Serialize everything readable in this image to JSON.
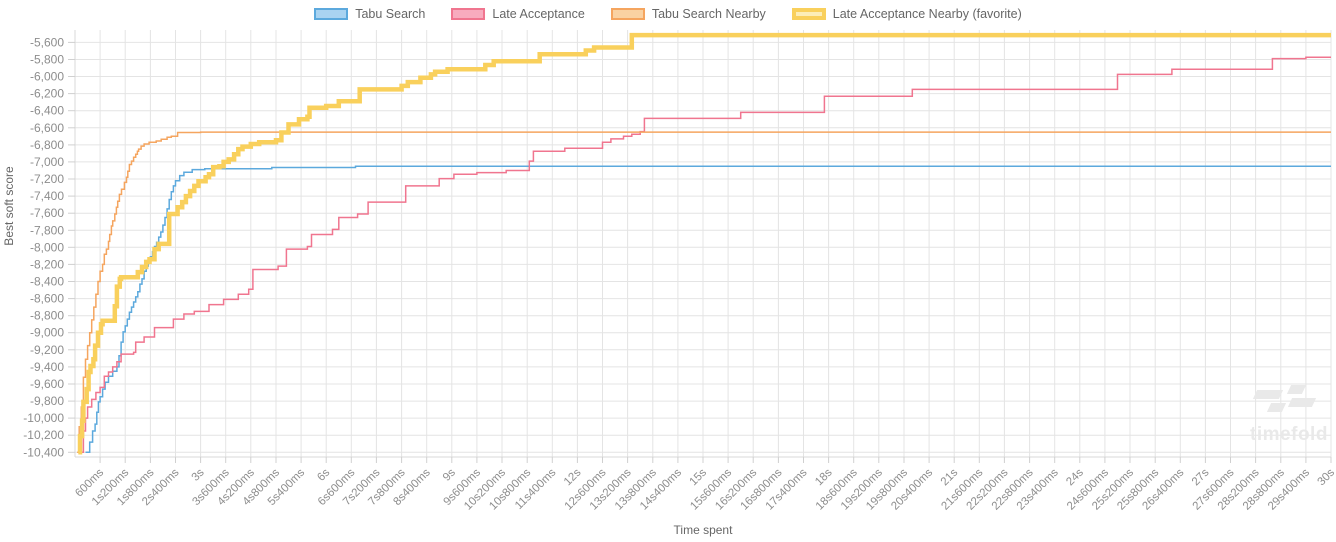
{
  "axes": {
    "x_title": "Time spent",
    "y_title": "Best soft score"
  },
  "watermark": {
    "text": "timefold"
  },
  "legend": {
    "items": [
      {
        "label": "Tabu Search",
        "color": "#5ca9dd",
        "fill": "#a9d3f1",
        "border_width": 2
      },
      {
        "label": "Late Acceptance",
        "color": "#f0758f",
        "fill": "#f8abbe",
        "border_width": 2
      },
      {
        "label": "Tabu Search Nearby",
        "color": "#f5a55f",
        "fill": "#fad2a2",
        "border_width": 2
      },
      {
        "label": "Late Acceptance Nearby (favorite)",
        "color": "#f9d05c",
        "fill": "#fcedb7",
        "border_width": 4
      }
    ]
  },
  "chart_data": {
    "type": "line",
    "step": true,
    "title": "",
    "xlabel": "Time spent",
    "ylabel": "Best soft score",
    "x_unit": "milliseconds",
    "xlim_ms": [
      0,
      30000
    ],
    "ylim": [
      -10455,
      -5455
    ],
    "grid": true,
    "legend_position": "top",
    "x_ticks": [
      [
        600,
        "600ms"
      ],
      [
        1200,
        "1s200ms"
      ],
      [
        1800,
        "1s800ms"
      ],
      [
        2400,
        "2s400ms"
      ],
      [
        3000,
        "3s"
      ],
      [
        3600,
        "3s600ms"
      ],
      [
        4200,
        "4s200ms"
      ],
      [
        4800,
        "4s800ms"
      ],
      [
        5400,
        "5s400ms"
      ],
      [
        6000,
        "6s"
      ],
      [
        6600,
        "6s600ms"
      ],
      [
        7200,
        "7s200ms"
      ],
      [
        7800,
        "7s800ms"
      ],
      [
        8400,
        "8s400ms"
      ],
      [
        9000,
        "9s"
      ],
      [
        9600,
        "9s600ms"
      ],
      [
        10200,
        "10s200ms"
      ],
      [
        10800,
        "10s800ms"
      ],
      [
        11400,
        "11s400ms"
      ],
      [
        12000,
        "12s"
      ],
      [
        12600,
        "12s600ms"
      ],
      [
        13200,
        "13s200ms"
      ],
      [
        13800,
        "13s800ms"
      ],
      [
        14400,
        "14s400ms"
      ],
      [
        15000,
        "15s"
      ],
      [
        15600,
        "15s600ms"
      ],
      [
        16200,
        "16s200ms"
      ],
      [
        16800,
        "16s800ms"
      ],
      [
        17400,
        "17s400ms"
      ],
      [
        18000,
        "18s"
      ],
      [
        18600,
        "18s600ms"
      ],
      [
        19200,
        "19s200ms"
      ],
      [
        19800,
        "19s800ms"
      ],
      [
        20400,
        "20s400ms"
      ],
      [
        21000,
        "21s"
      ],
      [
        21600,
        "21s600ms"
      ],
      [
        22200,
        "22s200ms"
      ],
      [
        22800,
        "22s800ms"
      ],
      [
        23400,
        "23s400ms"
      ],
      [
        24000,
        "24s"
      ],
      [
        24600,
        "24s600ms"
      ],
      [
        25200,
        "25s200ms"
      ],
      [
        25800,
        "25s800ms"
      ],
      [
        26400,
        "26s400ms"
      ],
      [
        27000,
        "27s"
      ],
      [
        27600,
        "27s600ms"
      ],
      [
        28200,
        "28s200ms"
      ],
      [
        28800,
        "28s800ms"
      ],
      [
        29400,
        "29s400ms"
      ],
      [
        30000,
        "30s"
      ]
    ],
    "y_ticks": [
      [
        -5600,
        "-5,600"
      ],
      [
        -5800,
        "-5,800"
      ],
      [
        -6000,
        "-6,000"
      ],
      [
        -6200,
        "-6,200"
      ],
      [
        -6400,
        "-6,400"
      ],
      [
        -6600,
        "-6,600"
      ],
      [
        -6800,
        "-6,800"
      ],
      [
        -7000,
        "-7,000"
      ],
      [
        -7200,
        "-7,200"
      ],
      [
        -7400,
        "-7,400"
      ],
      [
        -7600,
        "-7,600"
      ],
      [
        -7800,
        "-7,800"
      ],
      [
        -8000,
        "-8,000"
      ],
      [
        -8200,
        "-8,200"
      ],
      [
        -8400,
        "-8,400"
      ],
      [
        -8600,
        "-8,600"
      ],
      [
        -8800,
        "-8,800"
      ],
      [
        -9000,
        "-9,000"
      ],
      [
        -9200,
        "-9,200"
      ],
      [
        -9400,
        "-9,400"
      ],
      [
        -9600,
        "-9,600"
      ],
      [
        -9800,
        "-9,800"
      ],
      [
        -10000,
        "-10,000"
      ],
      [
        -10200,
        "-10,200"
      ],
      [
        -10400,
        "-10,400"
      ]
    ],
    "series": [
      {
        "name": "Tabu Search",
        "slug": "tabu-search",
        "color": "#5ca9dd",
        "line_width": 1.5,
        "points": [
          [
            250,
            -10400
          ],
          [
            350,
            -10280
          ],
          [
            420,
            -10150
          ],
          [
            480,
            -10070
          ],
          [
            520,
            -9930
          ],
          [
            560,
            -9810
          ],
          [
            600,
            -9750
          ],
          [
            660,
            -9660
          ],
          [
            720,
            -9580
          ],
          [
            800,
            -9510
          ],
          [
            900,
            -9450
          ],
          [
            1000,
            -9400
          ],
          [
            1050,
            -9270
          ],
          [
            1100,
            -9110
          ],
          [
            1150,
            -8990
          ],
          [
            1200,
            -8920
          ],
          [
            1250,
            -8840
          ],
          [
            1300,
            -8760
          ],
          [
            1350,
            -8700
          ],
          [
            1400,
            -8640
          ],
          [
            1450,
            -8580
          ],
          [
            1500,
            -8520
          ],
          [
            1550,
            -8430
          ],
          [
            1600,
            -8370
          ],
          [
            1650,
            -8280
          ],
          [
            1700,
            -8220
          ],
          [
            1750,
            -8170
          ],
          [
            1800,
            -8110
          ],
          [
            1850,
            -8050
          ],
          [
            1900,
            -7990
          ],
          [
            1950,
            -7940
          ],
          [
            2000,
            -7880
          ],
          [
            2050,
            -7820
          ],
          [
            2100,
            -7740
          ],
          [
            2150,
            -7650
          ],
          [
            2200,
            -7550
          ],
          [
            2250,
            -7440
          ],
          [
            2300,
            -7350
          ],
          [
            2350,
            -7280
          ],
          [
            2400,
            -7220
          ],
          [
            2500,
            -7160
          ],
          [
            2600,
            -7120
          ],
          [
            2800,
            -7090
          ],
          [
            3100,
            -7080
          ],
          [
            4700,
            -7065
          ],
          [
            6700,
            -7050
          ],
          [
            30000,
            -7050
          ]
        ]
      },
      {
        "name": "Late Acceptance",
        "slug": "late-acceptance",
        "color": "#f0758f",
        "line_width": 1.5,
        "points": [
          [
            150,
            -10400
          ],
          [
            200,
            -10150
          ],
          [
            250,
            -10000
          ],
          [
            300,
            -9870
          ],
          [
            400,
            -9780
          ],
          [
            500,
            -9700
          ],
          [
            600,
            -9640
          ],
          [
            700,
            -9510
          ],
          [
            800,
            -9460
          ],
          [
            900,
            -9400
          ],
          [
            1000,
            -9340
          ],
          [
            1100,
            -9250
          ],
          [
            1400,
            -9230
          ],
          [
            1450,
            -9110
          ],
          [
            1650,
            -9050
          ],
          [
            1900,
            -8940
          ],
          [
            2350,
            -8840
          ],
          [
            2600,
            -8780
          ],
          [
            2850,
            -8750
          ],
          [
            3200,
            -8670
          ],
          [
            3550,
            -8610
          ],
          [
            3900,
            -8550
          ],
          [
            4150,
            -8490
          ],
          [
            4250,
            -8260
          ],
          [
            4850,
            -8220
          ],
          [
            5050,
            -8020
          ],
          [
            5550,
            -7990
          ],
          [
            5650,
            -7850
          ],
          [
            6150,
            -7790
          ],
          [
            6300,
            -7650
          ],
          [
            6750,
            -7610
          ],
          [
            7000,
            -7470
          ],
          [
            7900,
            -7280
          ],
          [
            8700,
            -7195
          ],
          [
            9050,
            -7145
          ],
          [
            9600,
            -7125
          ],
          [
            10300,
            -7100
          ],
          [
            10850,
            -6990
          ],
          [
            10950,
            -6875
          ],
          [
            11700,
            -6840
          ],
          [
            12600,
            -6770
          ],
          [
            12800,
            -6730
          ],
          [
            13100,
            -6700
          ],
          [
            13300,
            -6675
          ],
          [
            13500,
            -6645
          ],
          [
            13600,
            -6490
          ],
          [
            15900,
            -6420
          ],
          [
            17900,
            -6230
          ],
          [
            20000,
            -6150
          ],
          [
            24900,
            -5975
          ],
          [
            26200,
            -5915
          ],
          [
            28600,
            -5790
          ],
          [
            29400,
            -5775
          ],
          [
            30000,
            -5775
          ]
        ]
      },
      {
        "name": "Tabu Search Nearby",
        "slug": "tabu-search-nearby",
        "color": "#f5a55f",
        "line_width": 1.5,
        "points": [
          [
            50,
            -10400
          ],
          [
            100,
            -10100
          ],
          [
            150,
            -9870
          ],
          [
            200,
            -9520
          ],
          [
            250,
            -9310
          ],
          [
            300,
            -9150
          ],
          [
            350,
            -9000
          ],
          [
            400,
            -8850
          ],
          [
            450,
            -8700
          ],
          [
            500,
            -8550
          ],
          [
            550,
            -8400
          ],
          [
            600,
            -8280
          ],
          [
            660,
            -8200
          ],
          [
            700,
            -8080
          ],
          [
            750,
            -8020
          ],
          [
            800,
            -7930
          ],
          [
            830,
            -7850
          ],
          [
            870,
            -7750
          ],
          [
            900,
            -7690
          ],
          [
            950,
            -7610
          ],
          [
            990,
            -7530
          ],
          [
            1020,
            -7460
          ],
          [
            1060,
            -7380
          ],
          [
            1110,
            -7320
          ],
          [
            1180,
            -7240
          ],
          [
            1230,
            -7180
          ],
          [
            1260,
            -7110
          ],
          [
            1300,
            -7030
          ],
          [
            1350,
            -6990
          ],
          [
            1400,
            -6945
          ],
          [
            1450,
            -6910
          ],
          [
            1490,
            -6875
          ],
          [
            1520,
            -6850
          ],
          [
            1580,
            -6815
          ],
          [
            1650,
            -6790
          ],
          [
            1770,
            -6770
          ],
          [
            1940,
            -6755
          ],
          [
            2060,
            -6735
          ],
          [
            2200,
            -6710
          ],
          [
            2300,
            -6700
          ],
          [
            2450,
            -6655
          ],
          [
            3000,
            -6650
          ],
          [
            30000,
            -6650
          ]
        ]
      },
      {
        "name": "Late Acceptance Nearby (favorite)",
        "slug": "late-acceptance-nearby",
        "color": "#f9d05c",
        "line_width": 4.5,
        "points": [
          [
            80,
            -10400
          ],
          [
            120,
            -10210
          ],
          [
            170,
            -10030
          ],
          [
            200,
            -9810
          ],
          [
            280,
            -9660
          ],
          [
            325,
            -9460
          ],
          [
            370,
            -9390
          ],
          [
            440,
            -9310
          ],
          [
            480,
            -9150
          ],
          [
            550,
            -9000
          ],
          [
            620,
            -8900
          ],
          [
            660,
            -8860
          ],
          [
            950,
            -8690
          ],
          [
            1000,
            -8460
          ],
          [
            1070,
            -8370
          ],
          [
            1100,
            -8350
          ],
          [
            1500,
            -8290
          ],
          [
            1600,
            -8230
          ],
          [
            1700,
            -8170
          ],
          [
            1780,
            -8140
          ],
          [
            1900,
            -8020
          ],
          [
            2000,
            -7960
          ],
          [
            2250,
            -7610
          ],
          [
            2450,
            -7530
          ],
          [
            2560,
            -7470
          ],
          [
            2650,
            -7400
          ],
          [
            2750,
            -7340
          ],
          [
            2850,
            -7280
          ],
          [
            2950,
            -7225
          ],
          [
            3120,
            -7180
          ],
          [
            3200,
            -7145
          ],
          [
            3300,
            -7060
          ],
          [
            3450,
            -7050
          ],
          [
            3550,
            -7000
          ],
          [
            3670,
            -6970
          ],
          [
            3800,
            -6910
          ],
          [
            3900,
            -6850
          ],
          [
            4000,
            -6820
          ],
          [
            4200,
            -6790
          ],
          [
            4400,
            -6770
          ],
          [
            4800,
            -6745
          ],
          [
            4930,
            -6655
          ],
          [
            5100,
            -6560
          ],
          [
            5350,
            -6500
          ],
          [
            5550,
            -6470
          ],
          [
            5600,
            -6365
          ],
          [
            6000,
            -6345
          ],
          [
            6300,
            -6290
          ],
          [
            6800,
            -6150
          ],
          [
            7800,
            -6110
          ],
          [
            7950,
            -6065
          ],
          [
            8250,
            -6015
          ],
          [
            8500,
            -5975
          ],
          [
            8600,
            -5945
          ],
          [
            8900,
            -5915
          ],
          [
            9800,
            -5865
          ],
          [
            10000,
            -5820
          ],
          [
            11100,
            -5740
          ],
          [
            12200,
            -5695
          ],
          [
            12400,
            -5660
          ],
          [
            13300,
            -5515
          ],
          [
            30000,
            -5515
          ]
        ]
      }
    ]
  }
}
